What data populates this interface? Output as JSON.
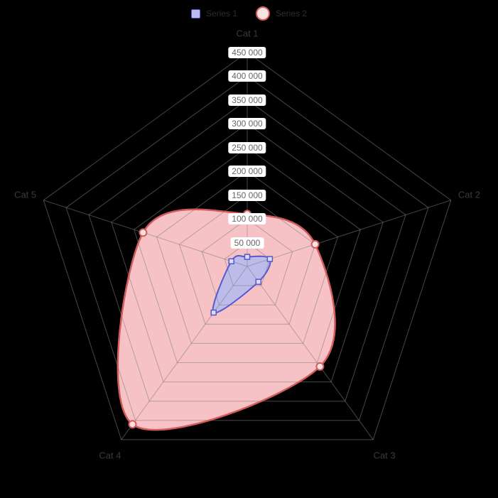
{
  "chart": {
    "background": "#000000",
    "grid_color": "rgba(128,128,128,0.55)",
    "tick_label_bg": "#ffffff",
    "tick_label_color": "#666666",
    "category_label_color": "#3a3a3a"
  },
  "legend": {
    "text_color": "#2e2e2e"
  },
  "chart_data": {
    "type": "radar",
    "categories": [
      "Cat 1",
      "Cat 2",
      "Cat 3",
      "Cat 4",
      "Cat 5"
    ],
    "axis_max": 450000,
    "tick_step": 50000,
    "tick_labels": [
      "50 000",
      "100 000",
      "150 000",
      "200 000",
      "250 000",
      "300 000",
      "350 000",
      "400 000",
      "450 000"
    ],
    "smooth": true,
    "grid": true,
    "legend_position": "top",
    "series": [
      {
        "name": "Series 1",
        "marker": "square",
        "stroke": "#5659ce",
        "fill": "#bdbbea",
        "marker_fill": "#dedcf6",
        "values": [
          20000,
          50000,
          40000,
          120000,
          35000
        ]
      },
      {
        "name": "Series 2",
        "marker": "circle",
        "stroke": "#d25b5b",
        "fill": "#f7c2c5",
        "marker_fill": "#fae2e3",
        "values": [
          110000,
          150000,
          260000,
          410000,
          230000
        ]
      }
    ]
  }
}
